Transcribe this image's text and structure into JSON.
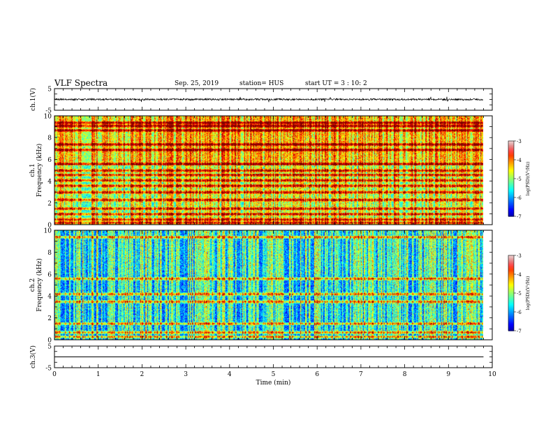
{
  "header": {
    "title": "VLF Spectra",
    "date": "Sep. 25, 2019",
    "station": "station= HUS",
    "start": "start  UT =  3 : 10: 2"
  },
  "chart_data": [
    {
      "type": "line",
      "panel": "ch1-waveform",
      "ylabel": "ch.1(V)",
      "ylim": [
        -5,
        5
      ],
      "yticks": [
        5,
        -5
      ],
      "baseline": 0,
      "description_values": {
        "noise_amplitude_V": 0.4,
        "spike_amplitude_V": 1.6
      }
    },
    {
      "type": "heatmap",
      "panel": "ch1-spectrogram",
      "ylabel": "ch.1 Frequency (kHz)",
      "ylim": [
        0,
        10
      ],
      "yticks": [
        0,
        2,
        4,
        6,
        8,
        10
      ],
      "background_level": -5.6,
      "bands_kHz": [
        0.2,
        0.5,
        1.0,
        1.5,
        2.3,
        3.0,
        3.6,
        4.1,
        4.6,
        5.0,
        5.6,
        6.9,
        7.4,
        8.7,
        9.1,
        9.4
      ],
      "colorbar": {
        "label": "log(PSD)(V²/Hz)",
        "ticks": [
          -3,
          -4,
          -5,
          -6,
          -7
        ]
      }
    },
    {
      "type": "heatmap",
      "panel": "ch2-spectrogram",
      "ylabel": "ch.2 Frequency (kHz)",
      "ylim": [
        0,
        10
      ],
      "yticks": [
        0,
        2,
        4,
        6,
        8,
        10
      ],
      "background_level": -6.3,
      "bands_kHz": [
        0.3,
        0.7,
        1.5,
        3.5,
        4.2,
        5.6,
        9.4
      ],
      "colorbar": {
        "label": "log(PSD)(V²/Hz)",
        "ticks": [
          -3,
          -4,
          -5,
          -6,
          -7
        ]
      }
    },
    {
      "type": "line",
      "panel": "ch3-waveform",
      "ylabel": "ch.3(V)",
      "ylim": [
        -5,
        5
      ],
      "yticks": [
        5,
        -5
      ],
      "baseline": 0,
      "xlabel": "Time (min)",
      "xlim": [
        0,
        10
      ],
      "xticks": [
        0,
        1,
        2,
        3,
        4,
        5,
        6,
        7,
        8,
        9,
        10
      ],
      "data_end_min": 9.8
    }
  ]
}
